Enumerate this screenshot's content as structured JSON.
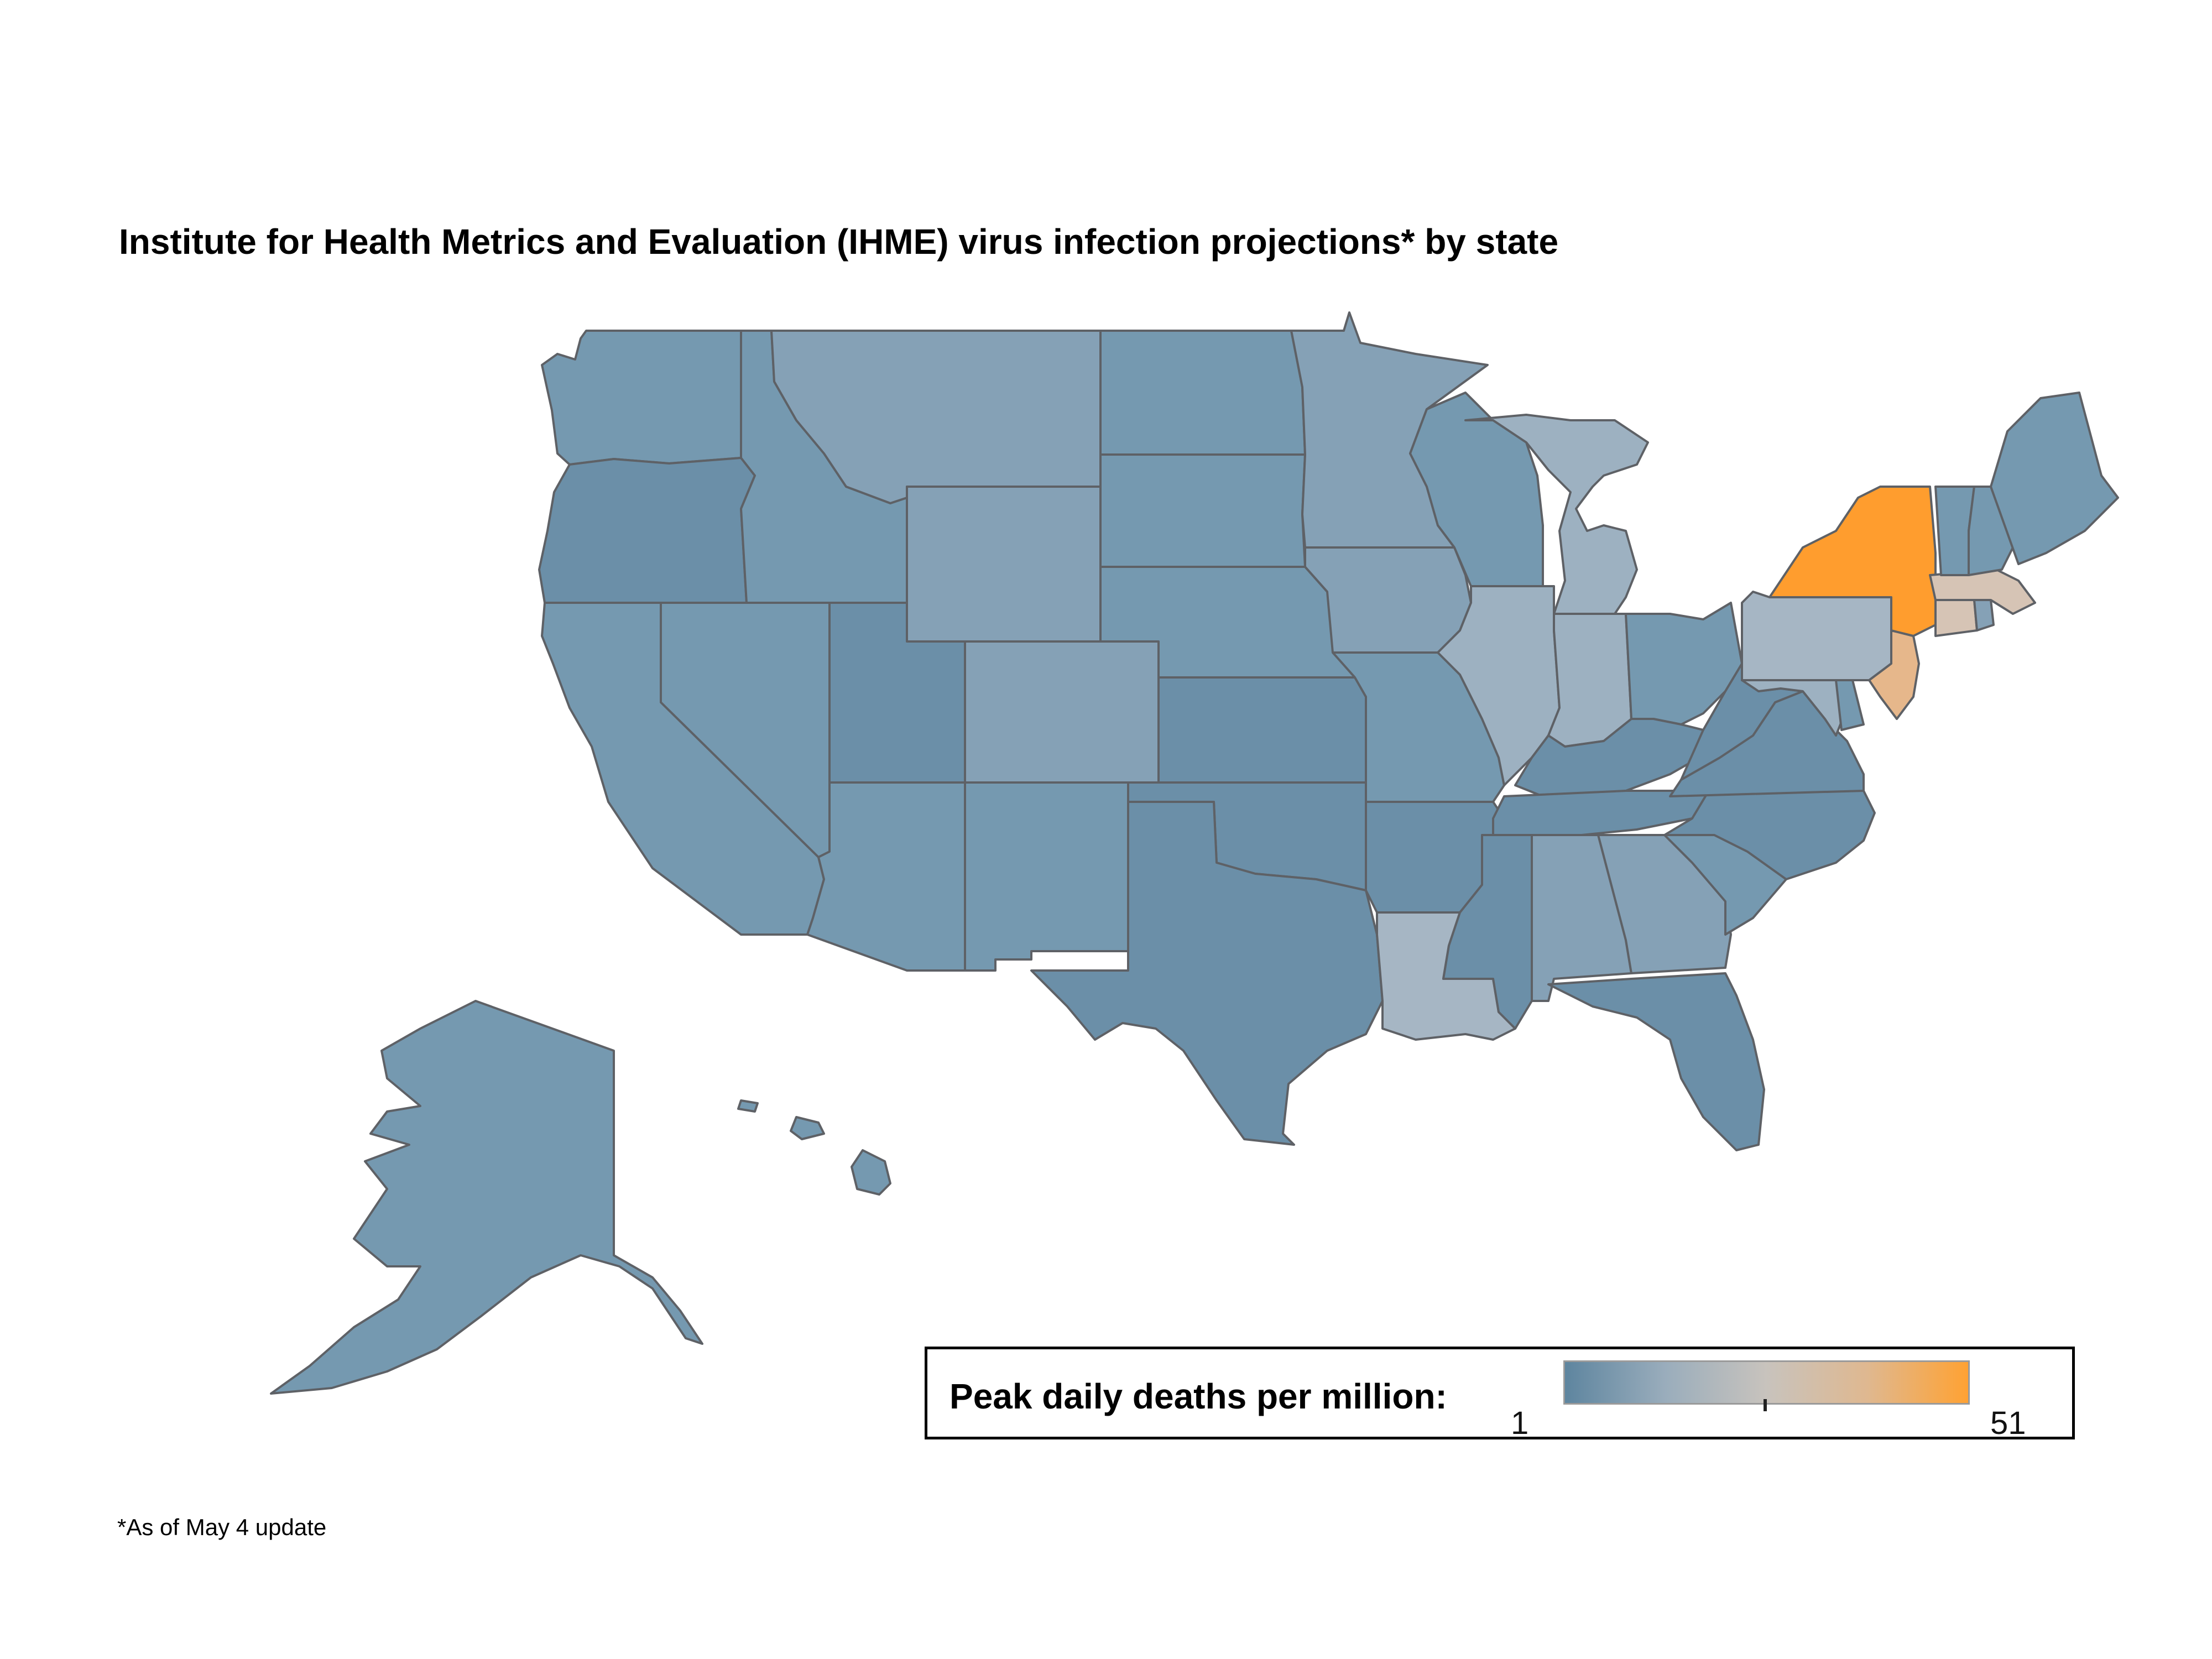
{
  "title": "Institute for Health Metrics and Evaluation (IHME) virus infection projections* by state",
  "footnote": "*As of May 4 update",
  "legend": {
    "label": "Peak daily deaths per million:",
    "min": "1",
    "max": "51",
    "gradient": [
      "#5e859f",
      "#9aadbc",
      "#c8c3bd",
      "#dfb890",
      "#ffa233"
    ]
  },
  "colors": {
    "blue_deep": "#6b8fa8",
    "blue_mid": "#7599b0",
    "blue_light": "#85a1b6",
    "blue_pale": "#9db1c1",
    "grey_pale": "#a6b6c4",
    "tan": "#d6c4b5",
    "peach": "#e6b78b",
    "orange": "#ff9d2e",
    "stroke": "#5e6166"
  },
  "states": [
    {
      "name": "WA",
      "color": "blue_mid"
    },
    {
      "name": "OR",
      "color": "blue_deep"
    },
    {
      "name": "CA",
      "color": "blue_mid"
    },
    {
      "name": "NV",
      "color": "blue_mid"
    },
    {
      "name": "ID",
      "color": "blue_mid"
    },
    {
      "name": "MT",
      "color": "blue_light"
    },
    {
      "name": "WY",
      "color": "blue_light"
    },
    {
      "name": "UT",
      "color": "blue_deep"
    },
    {
      "name": "AZ",
      "color": "blue_mid"
    },
    {
      "name": "CO",
      "color": "blue_light"
    },
    {
      "name": "NM",
      "color": "blue_mid"
    },
    {
      "name": "ND",
      "color": "blue_mid"
    },
    {
      "name": "SD",
      "color": "blue_mid"
    },
    {
      "name": "NE",
      "color": "blue_mid"
    },
    {
      "name": "KS",
      "color": "blue_deep"
    },
    {
      "name": "OK",
      "color": "blue_deep"
    },
    {
      "name": "TX",
      "color": "blue_deep"
    },
    {
      "name": "MN",
      "color": "blue_light"
    },
    {
      "name": "IA",
      "color": "blue_light"
    },
    {
      "name": "MO",
      "color": "blue_mid"
    },
    {
      "name": "AR",
      "color": "blue_deep"
    },
    {
      "name": "LA",
      "color": "grey_pale"
    },
    {
      "name": "WI",
      "color": "blue_mid"
    },
    {
      "name": "IL",
      "color": "blue_pale"
    },
    {
      "name": "MI",
      "color": "blue_pale"
    },
    {
      "name": "IN",
      "color": "blue_pale"
    },
    {
      "name": "OH",
      "color": "blue_mid"
    },
    {
      "name": "KY",
      "color": "blue_deep"
    },
    {
      "name": "TN",
      "color": "blue_deep"
    },
    {
      "name": "MS",
      "color": "blue_deep"
    },
    {
      "name": "AL",
      "color": "blue_light"
    },
    {
      "name": "GA",
      "color": "blue_light"
    },
    {
      "name": "FL",
      "color": "blue_deep"
    },
    {
      "name": "SC",
      "color": "blue_mid"
    },
    {
      "name": "NC",
      "color": "blue_deep"
    },
    {
      "name": "VA",
      "color": "blue_deep"
    },
    {
      "name": "WV",
      "color": "blue_deep"
    },
    {
      "name": "MD",
      "color": "blue_pale"
    },
    {
      "name": "DE",
      "color": "blue_mid"
    },
    {
      "name": "PA",
      "color": "grey_pale"
    },
    {
      "name": "NJ",
      "color": "peach"
    },
    {
      "name": "NY",
      "color": "orange"
    },
    {
      "name": "CT",
      "color": "tan"
    },
    {
      "name": "RI",
      "color": "blue_light"
    },
    {
      "name": "MA",
      "color": "tan"
    },
    {
      "name": "VT",
      "color": "blue_mid"
    },
    {
      "name": "NH",
      "color": "blue_mid"
    },
    {
      "name": "ME",
      "color": "blue_mid"
    },
    {
      "name": "AK",
      "color": "blue_mid"
    },
    {
      "name": "HI",
      "color": "blue_mid"
    }
  ]
}
